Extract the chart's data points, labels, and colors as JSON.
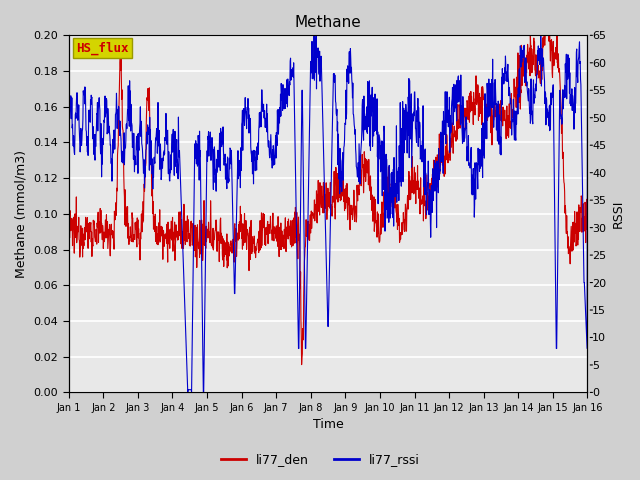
{
  "title": "Methane",
  "ylabel_left": "Methane (mmol/m3)",
  "ylabel_right": "RSSI",
  "xlabel": "Time",
  "ylim_left": [
    0.0,
    0.2
  ],
  "ylim_right": [
    0,
    65
  ],
  "yticks_left": [
    0.0,
    0.02,
    0.04,
    0.06,
    0.08,
    0.1,
    0.12,
    0.14,
    0.16,
    0.18,
    0.2
  ],
  "yticks_right": [
    0,
    5,
    10,
    15,
    20,
    25,
    30,
    35,
    40,
    45,
    50,
    55,
    60,
    65
  ],
  "xtick_labels": [
    "Jan 1",
    "Jan 2",
    "Jan 3",
    "Jan 4",
    "Jan 5",
    "Jan 6",
    "Jan 7",
    "Jan 8",
    "Jan 9",
    "Jan 10",
    "Jan 11",
    "Jan 12",
    "Jan 13",
    "Jan 14",
    "Jan 15",
    "Jan 16"
  ],
  "color_den": "#cc0000",
  "color_rssi": "#0000cc",
  "legend_labels": [
    "li77_den",
    "li77_rssi"
  ],
  "annotation_text": "HS_flux",
  "annotation_color": "#cc0000",
  "annotation_bg": "#d4d400",
  "annotation_edge": "#999900",
  "outer_bg": "#d0d0d0",
  "plot_bg": "#e8e8e8",
  "linewidth": 0.8,
  "n_points": 1500
}
